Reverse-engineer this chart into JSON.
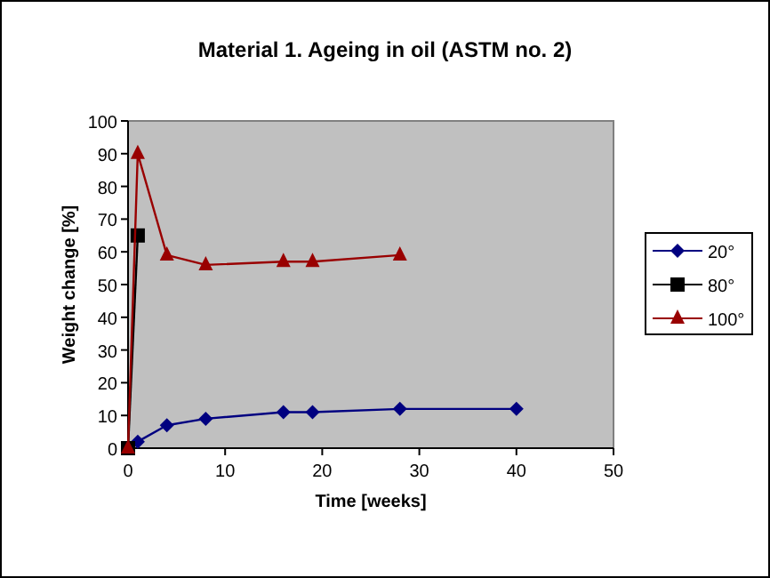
{
  "chart_data": {
    "type": "line",
    "title": "Material 1. Ageing in oil (ASTM no. 2)",
    "xlabel": "Time [weeks]",
    "ylabel": "Weight change [%]",
    "xlim": [
      0,
      50
    ],
    "xticks": [
      0,
      10,
      20,
      30,
      40,
      50
    ],
    "ylim": [
      0,
      100
    ],
    "yticks": [
      0,
      10,
      20,
      30,
      40,
      50,
      60,
      70,
      80,
      90,
      100
    ],
    "grid": false,
    "legend": "right",
    "series": [
      {
        "name": "20°",
        "color": "#000080",
        "marker": "diamond",
        "x": [
          0,
          1,
          4,
          8,
          16,
          19,
          28,
          40
        ],
        "values": [
          0,
          2,
          7,
          9,
          11,
          11,
          12,
          12
        ]
      },
      {
        "name": "80°",
        "color": "#000000",
        "marker": "square",
        "x": [
          0,
          1
        ],
        "values": [
          0,
          65
        ]
      },
      {
        "name": "100°",
        "color": "#990000",
        "marker": "triangle",
        "x": [
          0,
          1,
          4,
          8,
          16,
          19,
          28
        ],
        "values": [
          0,
          90,
          59,
          56,
          57,
          57,
          59
        ]
      }
    ]
  }
}
